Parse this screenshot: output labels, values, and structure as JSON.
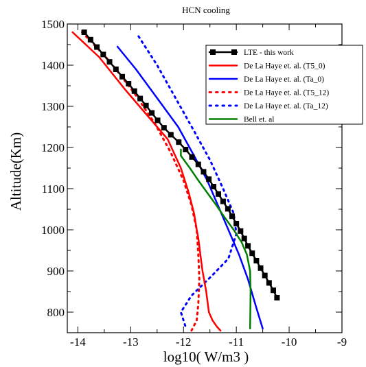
{
  "chart_data": {
    "type": "line",
    "title": "HCN cooling",
    "xlabel": "log10( W/m3 )",
    "ylabel": "Altitude(Km)",
    "xlim": [
      -14.2,
      -9
    ],
    "ylim": [
      750,
      1500
    ],
    "xticks": [
      -14,
      -13,
      -12,
      -11,
      -10,
      -9
    ],
    "yticks": [
      800,
      900,
      1000,
      1100,
      1200,
      1300,
      1400,
      1500
    ],
    "grid": false,
    "legend_position": "top-right",
    "series": [
      {
        "name": "LTE - this work",
        "color": "#000000",
        "style": "solid-square-markers",
        "x": [
          -13.88,
          -13.76,
          -13.64,
          -13.52,
          -13.4,
          -13.28,
          -13.16,
          -13.04,
          -12.93,
          -12.82,
          -12.71,
          -12.6,
          -12.49,
          -12.37,
          -12.24,
          -12.09,
          -11.96,
          -11.84,
          -11.72,
          -11.62,
          -11.52,
          -11.43,
          -11.34,
          -11.25,
          -11.16,
          -11.08,
          -11.0,
          -10.92,
          -10.85,
          -10.78,
          -10.7,
          -10.62,
          -10.54,
          -10.46,
          -10.38,
          -10.3,
          -10.23
        ],
        "y": [
          1480,
          1462,
          1444,
          1426,
          1408,
          1390,
          1372,
          1355,
          1337,
          1319,
          1302,
          1284,
          1266,
          1248,
          1231,
          1213,
          1195,
          1177,
          1159,
          1141,
          1123,
          1105,
          1087,
          1069,
          1051,
          1033,
          1015,
          997,
          979,
          961,
          943,
          925,
          907,
          889,
          871,
          853,
          835
        ]
      },
      {
        "name": "De La Haye et. al. (T5_0)",
        "color": "#ff0000",
        "style": "solid",
        "x": [
          -14.1,
          -13.6,
          -13.1,
          -12.7,
          -12.3,
          -12.05,
          -11.9,
          -11.8,
          -11.75,
          -11.72,
          -11.68,
          -11.64,
          -11.57,
          -11.52,
          -11.45,
          -11.37,
          -11.3
        ],
        "y": [
          1480,
          1420,
          1340,
          1280,
          1220,
          1150,
          1090,
          1040,
          1000,
          980,
          940,
          900,
          850,
          800,
          780,
          765,
          755
        ]
      },
      {
        "name": "De La Haye et. al. (Ta_0)",
        "color": "#0000ff",
        "style": "solid",
        "x": [
          -13.25,
          -12.9,
          -12.5,
          -12.1,
          -11.8,
          -11.55,
          -11.35,
          -11.15,
          -10.95,
          -10.78,
          -10.62,
          -10.5
        ],
        "y": [
          1445,
          1390,
          1320,
          1250,
          1180,
          1120,
          1060,
          1000,
          940,
          880,
          810,
          760
        ]
      },
      {
        "name": "De La Haye et. al. (T5_12)",
        "color": "#ff0000",
        "style": "dotted",
        "x": [
          -13.92,
          -13.4,
          -12.92,
          -12.55,
          -12.25,
          -12.0,
          -11.85,
          -11.75,
          -11.72,
          -11.7,
          -11.72,
          -11.75,
          -11.85
        ],
        "y": [
          1480,
          1410,
          1330,
          1260,
          1190,
          1120,
          1060,
          1000,
          940,
          880,
          820,
          780,
          755
        ]
      },
      {
        "name": "De La Haye et. al. (Ta_12)",
        "color": "#0000ff",
        "style": "dotted",
        "x": [
          -12.85,
          -12.5,
          -12.15,
          -11.8,
          -11.5,
          -11.25,
          -11.05,
          -11.0,
          -11.15,
          -11.45,
          -11.85,
          -12.05,
          -11.95
        ],
        "y": [
          1470,
          1400,
          1320,
          1240,
          1170,
          1100,
          1040,
          990,
          930,
          890,
          840,
          800,
          760
        ]
      },
      {
        "name": "Bell et. al",
        "color": "#008000",
        "style": "solid",
        "x": [
          -12.05,
          -12.05,
          -11.88,
          -11.72,
          -11.55,
          -11.38,
          -11.22,
          -11.05,
          -10.9,
          -10.8,
          -10.74,
          -10.73,
          -10.74
        ],
        "y": [
          1195,
          1180,
          1150,
          1120,
          1090,
          1060,
          1030,
          1000,
          970,
          940,
          900,
          850,
          760
        ]
      }
    ]
  }
}
